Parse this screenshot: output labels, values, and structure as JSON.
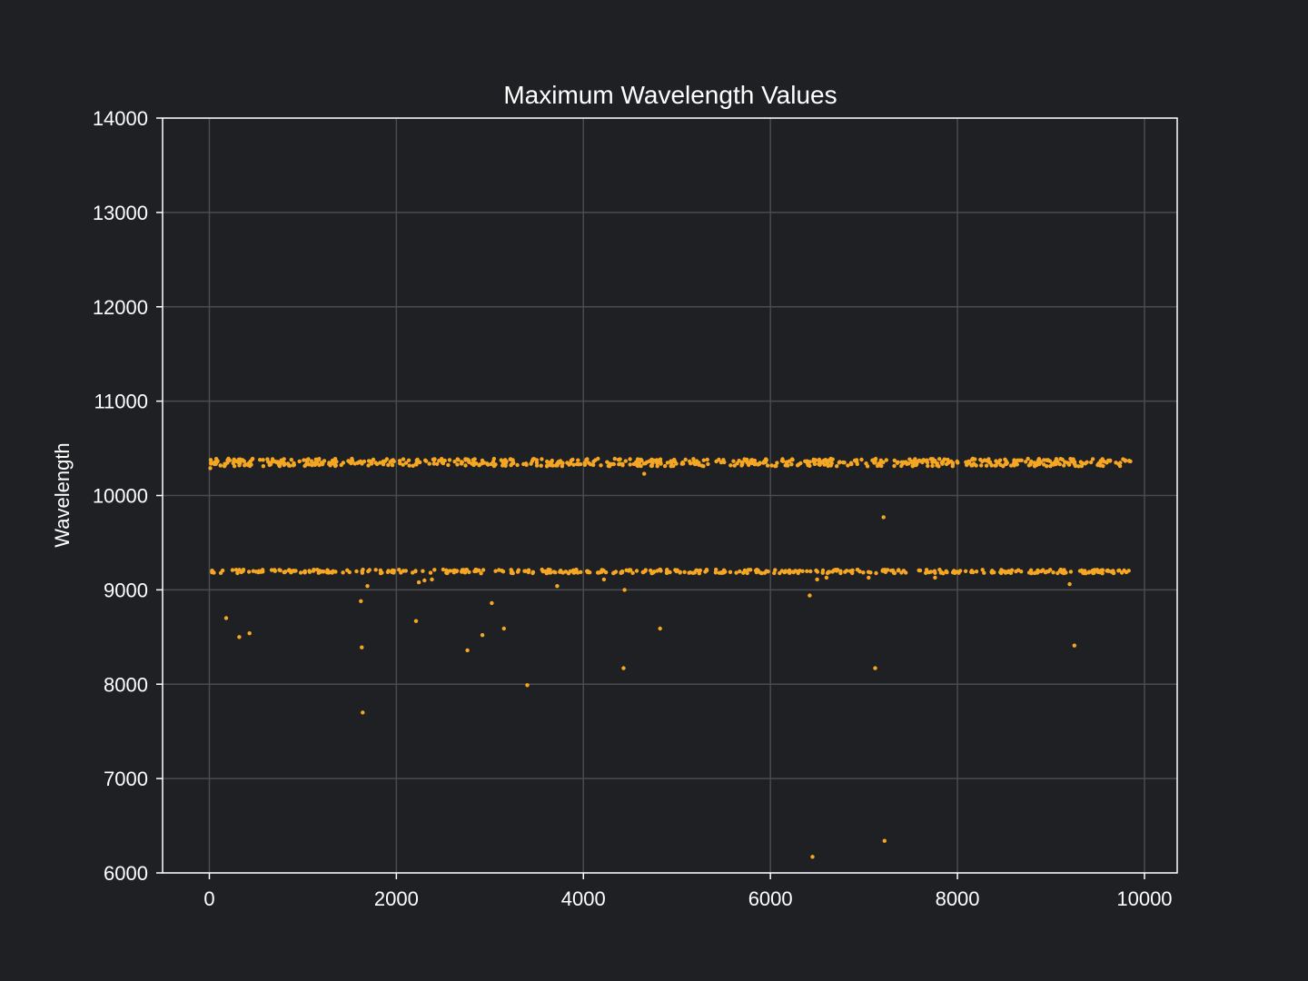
{
  "colors": {
    "background": "#1e2024",
    "plot_background": "#1e2024",
    "grid": "#4a4b4f",
    "axes": "#ffffff",
    "text": "#ffffff",
    "marker": "#f5a623"
  },
  "chart_data": {
    "type": "scatter",
    "title": "Maximum Wavelength Values",
    "xlabel": "",
    "ylabel": "Wavelength",
    "xlim": [
      -500,
      10350
    ],
    "ylim": [
      6000,
      14000
    ],
    "xticks": [
      0,
      2000,
      4000,
      6000,
      8000,
      10000
    ],
    "xtick_labels": [
      "0",
      "2000",
      "4000",
      "6000",
      "8000",
      "10000"
    ],
    "yticks": [
      6000,
      7000,
      8000,
      9000,
      10000,
      11000,
      12000,
      13000,
      14000
    ],
    "ytick_labels": [
      "6000",
      "7000",
      "8000",
      "9000",
      "10000",
      "11000",
      "12000",
      "13000",
      "14000"
    ],
    "grid": true,
    "legend": "none",
    "series": [
      {
        "color": "#f5a623",
        "bands": [
          {
            "center": 10350,
            "spread": 40,
            "x_start": 0,
            "x_end": 9880,
            "approx_points": 700
          },
          {
            "center": 9195,
            "spread": 20,
            "x_start": 0,
            "x_end": 9880,
            "approx_points": 450
          }
        ],
        "x": [
          180,
          320,
          430,
          1620,
          1630,
          1640,
          1690,
          2210,
          2240,
          2300,
          2380,
          2760,
          2920,
          3020,
          3150,
          3400,
          3720,
          4220,
          4430,
          4440,
          4650,
          4820,
          6420,
          6450,
          6500,
          6600,
          7050,
          7120,
          7200,
          7210,
          7220,
          7760,
          9200,
          9250,
          10
        ],
        "y": [
          8700,
          8500,
          8540,
          8880,
          8390,
          7700,
          9040,
          8670,
          9080,
          9100,
          9110,
          8360,
          8520,
          8860,
          8590,
          7990,
          9040,
          9110,
          8170,
          9000,
          10230,
          8590,
          8940,
          6170,
          9110,
          9130,
          9130,
          8170,
          9200,
          9770,
          6340,
          9130,
          9060,
          8410,
          10290
        ]
      }
    ]
  }
}
